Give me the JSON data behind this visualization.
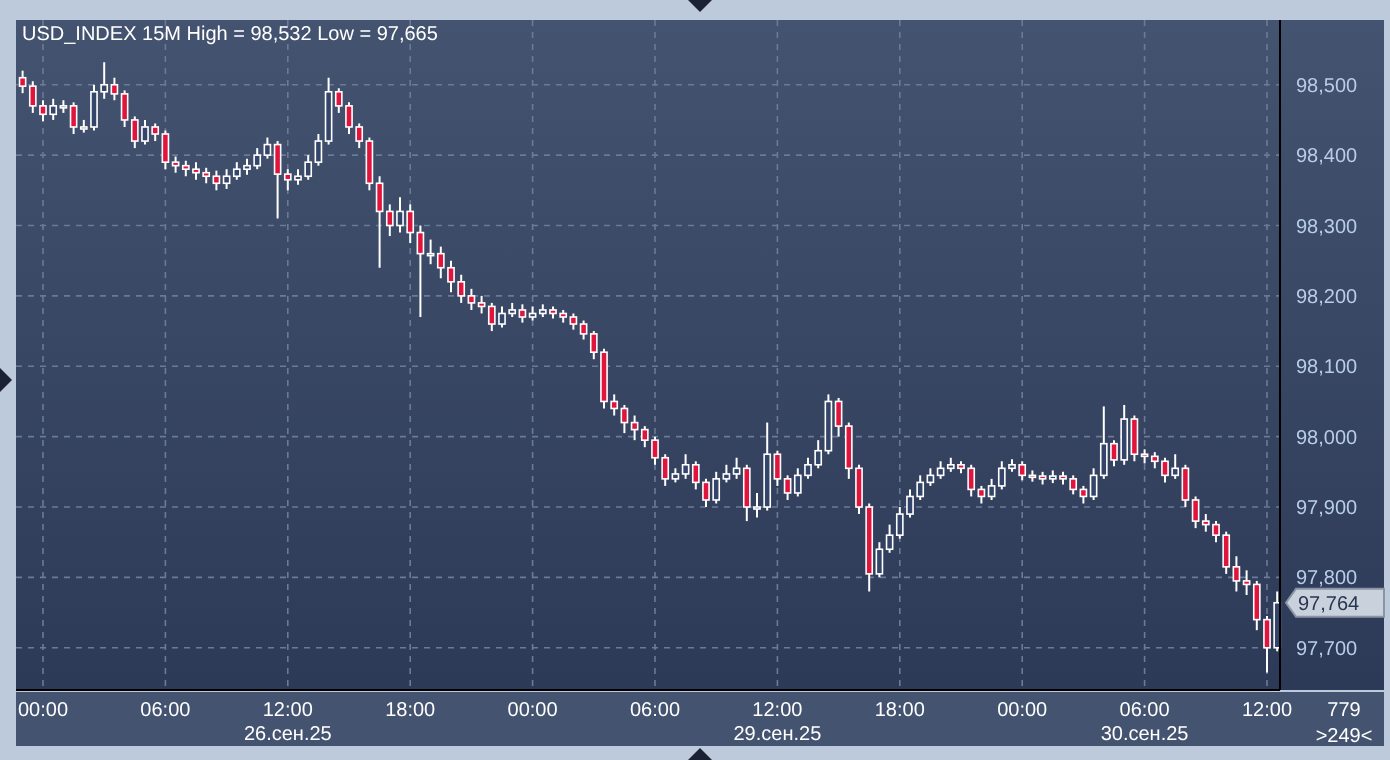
{
  "chart_data": {
    "type": "candlestick",
    "title": "USD_INDEX 15M High = 98,532 Low = 97,665",
    "categories": [
      null,
      null,
      "00:00",
      null,
      null,
      null,
      null,
      null,
      null,
      null,
      null,
      null,
      null,
      null,
      "06:00",
      null,
      null,
      null,
      null,
      null,
      null,
      null,
      null,
      null,
      null,
      null,
      "12:00\n26.сен.25",
      null,
      null,
      null,
      null,
      null,
      null,
      null,
      null,
      null,
      null,
      null,
      "18:00",
      null,
      null,
      null,
      null,
      null,
      null,
      null,
      null,
      null,
      null,
      null,
      "00:00",
      null,
      null,
      null,
      null,
      null,
      null,
      null,
      null,
      null,
      null,
      null,
      "06:00",
      null,
      null,
      null,
      null,
      null,
      null,
      null,
      null,
      null,
      null,
      null,
      "12:00\n29.сен.25",
      null,
      null,
      null,
      null,
      null,
      null,
      null,
      null,
      null,
      null,
      null,
      "18:00",
      null,
      null,
      null,
      null,
      null,
      null,
      null,
      null,
      null,
      null,
      null,
      "00:00",
      null,
      null,
      null,
      null,
      null,
      null,
      null,
      null,
      null,
      null,
      null,
      "06:00\n30.сен.25",
      null,
      null,
      null,
      null,
      null,
      null,
      null,
      null,
      null,
      null,
      null,
      "12:00",
      null
    ],
    "ohlc": [
      [
        98510,
        98520,
        98488,
        98498
      ],
      [
        98498,
        98505,
        98460,
        98470
      ],
      [
        98470,
        98478,
        98448,
        98458
      ],
      [
        98458,
        98480,
        98450,
        98470
      ],
      [
        98470,
        98478,
        98460,
        98470
      ],
      [
        98470,
        98475,
        98430,
        98440
      ],
      [
        98440,
        98450,
        98432,
        98440
      ],
      [
        98440,
        98500,
        98435,
        98490
      ],
      [
        98490,
        98532,
        98480,
        98500
      ],
      [
        98500,
        98510,
        98478,
        98487
      ],
      [
        98487,
        98492,
        98440,
        98450
      ],
      [
        98450,
        98455,
        98410,
        98420
      ],
      [
        98420,
        98450,
        98415,
        98440
      ],
      [
        98440,
        98445,
        98420,
        98430
      ],
      [
        98430,
        98435,
        98380,
        98390
      ],
      [
        98390,
        98398,
        98375,
        98385
      ],
      [
        98385,
        98392,
        98370,
        98380
      ],
      [
        98380,
        98390,
        98365,
        98375
      ],
      [
        98375,
        98382,
        98360,
        98370
      ],
      [
        98370,
        98378,
        98350,
        98360
      ],
      [
        98360,
        98380,
        98352,
        98370
      ],
      [
        98370,
        98390,
        98365,
        98380
      ],
      [
        98380,
        98395,
        98372,
        98385
      ],
      [
        98385,
        98410,
        98380,
        98400
      ],
      [
        98400,
        98425,
        98395,
        98415
      ],
      [
        98415,
        98420,
        98310,
        98373
      ],
      [
        98373,
        98380,
        98350,
        98365
      ],
      [
        98365,
        98380,
        98358,
        98370
      ],
      [
        98370,
        98400,
        98365,
        98390
      ],
      [
        98390,
        98430,
        98385,
        98420
      ],
      [
        98420,
        98510,
        98415,
        98490
      ],
      [
        98490,
        98495,
        98460,
        98470
      ],
      [
        98470,
        98475,
        98430,
        98440
      ],
      [
        98440,
        98445,
        98410,
        98420
      ],
      [
        98420,
        98425,
        98350,
        98360
      ],
      [
        98360,
        98370,
        98240,
        98320
      ],
      [
        98320,
        98330,
        98285,
        98300
      ],
      [
        98300,
        98340,
        98290,
        98320
      ],
      [
        98320,
        98330,
        98275,
        98290
      ],
      [
        98290,
        98300,
        98170,
        98260
      ],
      [
        98260,
        98280,
        98245,
        98260
      ],
      [
        98260,
        98270,
        98225,
        98240
      ],
      [
        98240,
        98250,
        98205,
        98220
      ],
      [
        98220,
        98230,
        98190,
        98200
      ],
      [
        98200,
        98210,
        98180,
        98190
      ],
      [
        98190,
        98200,
        98175,
        98185
      ],
      [
        98185,
        98190,
        98150,
        98160
      ],
      [
        98160,
        98185,
        98155,
        98175
      ],
      [
        98175,
        98190,
        98170,
        98180
      ],
      [
        98180,
        98188,
        98162,
        98170
      ],
      [
        98170,
        98185,
        98165,
        98175
      ],
      [
        98175,
        98188,
        98170,
        98180
      ],
      [
        98180,
        98185,
        98168,
        98175
      ],
      [
        98175,
        98180,
        98162,
        98170
      ],
      [
        98170,
        98175,
        98152,
        98160
      ],
      [
        98160,
        98165,
        98138,
        98146
      ],
      [
        98146,
        98150,
        98110,
        98120
      ],
      [
        98120,
        98125,
        98040,
        98050
      ],
      [
        98050,
        98060,
        98030,
        98040
      ],
      [
        98040,
        98045,
        98005,
        98020
      ],
      [
        98020,
        98030,
        97995,
        98010
      ],
      [
        98010,
        98015,
        97985,
        97995
      ],
      [
        97995,
        98000,
        97960,
        97970
      ],
      [
        97970,
        97975,
        97930,
        97940
      ],
      [
        97940,
        97955,
        97935,
        97947
      ],
      [
        97947,
        97975,
        97940,
        97960
      ],
      [
        97960,
        97965,
        97925,
        97935
      ],
      [
        97935,
        97940,
        97900,
        97910
      ],
      [
        97910,
        97950,
        97905,
        97940
      ],
      [
        97940,
        97960,
        97935,
        97947
      ],
      [
        97947,
        97970,
        97940,
        97955
      ],
      [
        97955,
        97960,
        97880,
        97900
      ],
      [
        97900,
        97920,
        97885,
        97900
      ],
      [
        97900,
        98020,
        97895,
        97975
      ],
      [
        97975,
        97980,
        97930,
        97940
      ],
      [
        97940,
        97945,
        97910,
        97920
      ],
      [
        97920,
        97955,
        97915,
        97945
      ],
      [
        97945,
        97970,
        97940,
        97960
      ],
      [
        97960,
        97995,
        97955,
        97980
      ],
      [
        97980,
        98060,
        97975,
        98050
      ],
      [
        98050,
        98055,
        98000,
        98015
      ],
      [
        98015,
        98020,
        97940,
        97955
      ],
      [
        97955,
        97960,
        97890,
        97900
      ],
      [
        97900,
        97905,
        97780,
        97805
      ],
      [
        97805,
        97850,
        97800,
        97840
      ],
      [
        97840,
        97875,
        97835,
        97860
      ],
      [
        97860,
        97900,
        97855,
        97890
      ],
      [
        97890,
        97925,
        97885,
        97915
      ],
      [
        97915,
        97945,
        97910,
        97935
      ],
      [
        97935,
        97955,
        97930,
        97945
      ],
      [
        97945,
        97965,
        97940,
        97955
      ],
      [
        97955,
        97970,
        97950,
        97960
      ],
      [
        97960,
        97965,
        97948,
        97955
      ],
      [
        97955,
        97960,
        97915,
        97925
      ],
      [
        97925,
        97930,
        97905,
        97915
      ],
      [
        97915,
        97940,
        97910,
        97930
      ],
      [
        97930,
        97965,
        97925,
        97955
      ],
      [
        97955,
        97968,
        97950,
        97960
      ],
      [
        97960,
        97965,
        97938,
        97945
      ],
      [
        97945,
        97952,
        97936,
        97944
      ],
      [
        97944,
        97950,
        97932,
        97940
      ],
      [
        97940,
        97952,
        97934,
        97944
      ],
      [
        97944,
        97950,
        97932,
        97940
      ],
      [
        97940,
        97945,
        97918,
        97925
      ],
      [
        97925,
        97930,
        97905,
        97915
      ],
      [
        97915,
        97955,
        97910,
        97945
      ],
      [
        97945,
        98043,
        97940,
        97990
      ],
      [
        97990,
        97995,
        97958,
        97967
      ],
      [
        97967,
        98045,
        97960,
        98025
      ],
      [
        98025,
        98030,
        97965,
        97975
      ],
      [
        97975,
        97982,
        97962,
        97972
      ],
      [
        97972,
        97978,
        97955,
        97965
      ],
      [
        97965,
        97970,
        97935,
        97945
      ],
      [
        97945,
        97975,
        97940,
        97955
      ],
      [
        97955,
        97960,
        97900,
        97910
      ],
      [
        97910,
        97915,
        97870,
        97880
      ],
      [
        97880,
        97890,
        97865,
        97875
      ],
      [
        97875,
        97880,
        97850,
        97860
      ],
      [
        97860,
        97865,
        97805,
        97815
      ],
      [
        97815,
        97830,
        97780,
        97795
      ],
      [
        97795,
        97810,
        97775,
        97790
      ],
      [
        97790,
        97795,
        97725,
        97740
      ],
      [
        97740,
        97745,
        97665,
        97700
      ],
      [
        97700,
        97780,
        97695,
        97764
      ]
    ],
    "color": "#ffffff",
    "colors": [
      "#e0143c",
      "#e0143c",
      "#e0143c",
      "#33456a",
      "#33456a",
      "#e0143c",
      "#33456a",
      "#33456a",
      "#33456a",
      "#e0143c",
      "#e0143c",
      "#e0143c",
      "#33456a",
      "#e0143c",
      "#e0143c",
      "#e0143c",
      "#e0143c",
      "#e0143c",
      "#e0143c",
      "#e0143c",
      "#33456a",
      "#33456a",
      "#33456a",
      "#33456a",
      "#33456a",
      "#e0143c",
      "#e0143c",
      "#33456a",
      "#33456a",
      "#33456a",
      "#33456a",
      "#e0143c",
      "#e0143c",
      "#e0143c",
      "#e0143c",
      "#e0143c",
      "#e0143c",
      "#33456a",
      "#e0143c",
      "#e0143c",
      "#33456a",
      "#e0143c",
      "#e0143c",
      "#e0143c",
      "#e0143c",
      "#e0143c",
      "#e0143c",
      "#33456a",
      "#33456a",
      "#e0143c",
      "#33456a",
      "#33456a",
      "#e0143c",
      "#e0143c",
      "#e0143c",
      "#e0143c",
      "#e0143c",
      "#e0143c",
      "#e0143c",
      "#e0143c",
      "#e0143c",
      "#e0143c",
      "#e0143c",
      "#e0143c",
      "#33456a",
      "#33456a",
      "#e0143c",
      "#e0143c",
      "#33456a",
      "#33456a",
      "#33456a",
      "#e0143c",
      "#33456a",
      "#33456a",
      "#e0143c",
      "#e0143c",
      "#33456a",
      "#33456a",
      "#33456a",
      "#33456a",
      "#e0143c",
      "#e0143c",
      "#e0143c",
      "#e0143c",
      "#33456a",
      "#33456a",
      "#33456a",
      "#33456a",
      "#33456a",
      "#33456a",
      "#33456a",
      "#33456a",
      "#e0143c",
      "#e0143c",
      "#e0143c",
      "#33456a",
      "#33456a",
      "#33456a",
      "#e0143c",
      "#e0143c",
      "#e0143c",
      "#33456a",
      "#e0143c",
      "#e0143c",
      "#e0143c",
      "#33456a",
      "#33456a",
      "#e0143c",
      "#33456a",
      "#e0143c",
      "#e0143c",
      "#e0143c",
      "#e0143c",
      "#33456a",
      "#e0143c",
      "#e0143c",
      "#e0143c",
      "#e0143c",
      "#e0143c",
      "#e0143c",
      "#e0143c",
      "#e0143c",
      "#e0143c",
      "#33456a"
    ],
    "ylim": [
      97640,
      98592
    ],
    "yticks": [
      {
        "value": 97700,
        "label": "97,700"
      },
      {
        "value": 97800,
        "label": "97,800"
      },
      {
        "value": 97900,
        "label": "97,900"
      },
      {
        "value": 98000,
        "label": "98,000"
      },
      {
        "value": 98100,
        "label": "98,100"
      },
      {
        "value": 98200,
        "label": "98,200"
      },
      {
        "value": 98300,
        "label": "98,300"
      },
      {
        "value": 98400,
        "label": "98,400"
      },
      {
        "value": 98500,
        "label": "98,500"
      }
    ],
    "grid": true,
    "annotations": [
      "97,764",
      "779",
      ">249<"
    ]
  }
}
